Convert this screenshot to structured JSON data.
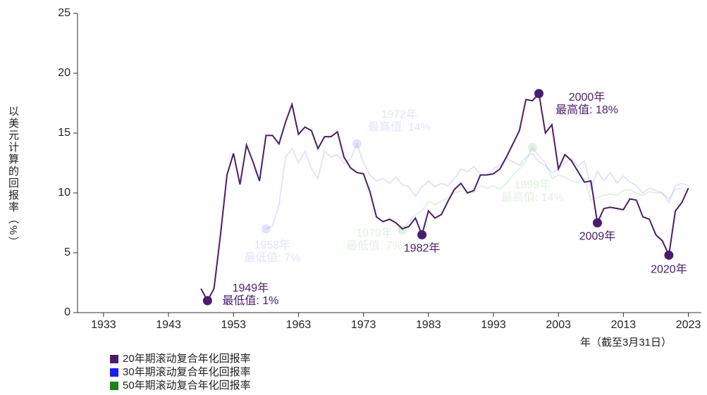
{
  "chart_data": {
    "type": "line",
    "ylabel": "以美元计算的回报率（%）",
    "xlabel": "年（截至3月31日）",
    "x": [
      1948,
      1949,
      1950,
      1951,
      1952,
      1953,
      1954,
      1955,
      1956,
      1957,
      1958,
      1959,
      1960,
      1961,
      1962,
      1963,
      1964,
      1965,
      1966,
      1967,
      1968,
      1969,
      1970,
      1971,
      1972,
      1973,
      1974,
      1975,
      1976,
      1977,
      1978,
      1979,
      1980,
      1981,
      1982,
      1983,
      1984,
      1985,
      1986,
      1987,
      1988,
      1989,
      1990,
      1991,
      1992,
      1993,
      1994,
      1995,
      1996,
      1997,
      1998,
      1999,
      2000,
      2001,
      2002,
      2003,
      2004,
      2005,
      2006,
      2007,
      2008,
      2009,
      2010,
      2011,
      2012,
      2013,
      2014,
      2015,
      2016,
      2017,
      2018,
      2019,
      2020,
      2021,
      2022,
      2023
    ],
    "series": [
      {
        "name": "20年期滚动复合年化回报率",
        "color": "#4b1c6e",
        "opacity": 1,
        "values": [
          2.0,
          1.0,
          2.0,
          6.5,
          11.5,
          13.3,
          10.7,
          14.0,
          12.6,
          11.0,
          14.8,
          14.8,
          14.1,
          15.9,
          17.4,
          14.9,
          15.5,
          15.2,
          13.7,
          14.7,
          14.7,
          15.1,
          13.0,
          12.1,
          11.7,
          11.6,
          10.1,
          8.0,
          7.6,
          7.8,
          7.5,
          7.0,
          7.2,
          7.9,
          6.5,
          8.5,
          7.9,
          8.2,
          9.3,
          10.3,
          10.8,
          10.0,
          10.2,
          11.5,
          11.5,
          11.6,
          12.0,
          13.0,
          14.1,
          15.2,
          17.8,
          17.7,
          18.3,
          15.0,
          15.7,
          12.0,
          13.2,
          12.7,
          11.8,
          10.9,
          11.0,
          7.5,
          8.7,
          8.8,
          8.7,
          8.6,
          9.5,
          9.4,
          8.0,
          7.8,
          6.5,
          6.0,
          4.8,
          8.5,
          9.2,
          10.4
        ]
      },
      {
        "name": "30年期滚动复合年化回报率",
        "color": "#1a1aff",
        "opacity": 0.12,
        "values": [
          null,
          null,
          null,
          null,
          null,
          null,
          null,
          null,
          null,
          null,
          7.0,
          7.2,
          9.0,
          13.0,
          13.7,
          12.5,
          13.5,
          12.0,
          11.2,
          13.5,
          13.0,
          13.2,
          12.5,
          12.8,
          14.1,
          12.5,
          11.5,
          11.0,
          11.2,
          10.8,
          11.3,
          10.7,
          10.5,
          9.7,
          10.5,
          11.0,
          10.5,
          10.8,
          10.6,
          11.2,
          12.0,
          11.8,
          12.2,
          11.5,
          11.5,
          12.0,
          12.3,
          12.9,
          12.6,
          12.3,
          13.0,
          13.3,
          12.6,
          12.3,
          11.7,
          12.0,
          12.5,
          12.9,
          12.2,
          12.7,
          10.4,
          11.8,
          11.0,
          11.7,
          10.8,
          11.4,
          10.9,
          10.6,
          10.0,
          10.4,
          10.2,
          10.0,
          9.2,
          10.6,
          10.8,
          10.6
        ]
      },
      {
        "name": "50年期滚动复合年化回报率",
        "color": "#118811",
        "opacity": 0.12,
        "values": [
          null,
          null,
          null,
          null,
          null,
          null,
          null,
          null,
          null,
          null,
          null,
          null,
          null,
          null,
          null,
          null,
          null,
          null,
          null,
          null,
          null,
          null,
          null,
          null,
          null,
          null,
          null,
          null,
          null,
          null,
          7.4,
          6.9,
          7.6,
          8.2,
          8.5,
          9.3,
          9.0,
          9.3,
          9.6,
          10.0,
          10.2,
          10.3,
          10.0,
          10.6,
          10.4,
          10.6,
          10.3,
          10.8,
          11.5,
          12.0,
          12.7,
          13.8,
          13.1,
          12.5,
          11.2,
          11.5,
          11.3,
          11.0,
          10.9,
          11.2,
          9.4,
          9.6,
          9.8,
          9.9,
          9.8,
          10.2,
          10.3,
          10.0,
          9.8,
          10.1,
          10.0,
          10.0,
          9.5,
          10.3,
          10.4,
          10.0
        ]
      }
    ],
    "annotations": [
      {
        "series": 0,
        "x": 1949,
        "lines": [
          "1949年",
          "最低值: 1%"
        ]
      },
      {
        "series": 0,
        "x": 1982,
        "lines": [
          "1982年"
        ]
      },
      {
        "series": 0,
        "x": 2000,
        "lines": [
          "2000年",
          "最高值: 18%"
        ]
      },
      {
        "series": 0,
        "x": 2009,
        "lines": [
          "2009年"
        ]
      },
      {
        "series": 0,
        "x": 2020,
        "lines": [
          "2020年"
        ]
      },
      {
        "series": 1,
        "x": 1958,
        "lines": [
          "1958年",
          "最低值: 7%"
        ]
      },
      {
        "series": 1,
        "x": 1972,
        "lines": [
          "1972年",
          "最高值: 14%"
        ]
      },
      {
        "series": 2,
        "x": 1979,
        "lines": [
          "1979年",
          "最低值: 7%"
        ]
      },
      {
        "series": 2,
        "x": 1999,
        "lines": [
          "1999年",
          "最高值: 14%"
        ]
      }
    ],
    "xlim": [
      1929,
      2025
    ],
    "xticks": [
      1933,
      1943,
      1953,
      1963,
      1973,
      1983,
      1993,
      2003,
      2013,
      2023
    ],
    "ylim": [
      0,
      25
    ],
    "yticks": [
      0,
      5,
      10,
      15,
      20,
      25
    ],
    "grid": false,
    "legend": "bottom-left"
  }
}
